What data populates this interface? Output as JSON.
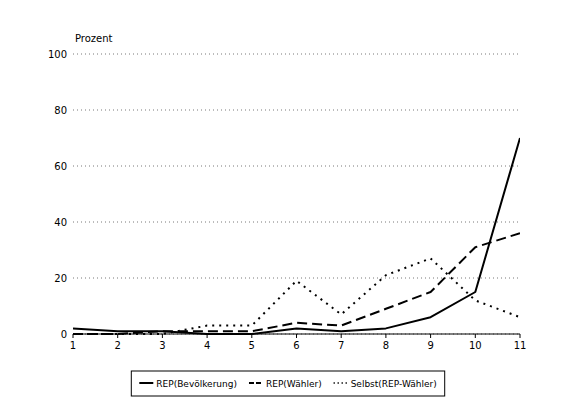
{
  "chart_data": {
    "type": "line",
    "y_label": "Prozent",
    "x": [
      1,
      2,
      3,
      4,
      5,
      6,
      7,
      8,
      9,
      10,
      11
    ],
    "xlim": [
      1,
      11
    ],
    "xticks": [
      1,
      2,
      3,
      4,
      5,
      6,
      7,
      8,
      9,
      10,
      11
    ],
    "ylim": [
      0,
      100
    ],
    "yticks": [
      0,
      20,
      40,
      60,
      80,
      100
    ],
    "grid": true,
    "legend": "bottom",
    "series": [
      {
        "name": "REP(Bevölkerung)",
        "color": "#000000",
        "line_style": "solid",
        "values": [
          2,
          1,
          1,
          0,
          0,
          2,
          1,
          2,
          6,
          15,
          70
        ]
      },
      {
        "name": "REP(Wähler)",
        "color": "#000000",
        "line_style": "dashed",
        "values": [
          0,
          0,
          1,
          1,
          1,
          4,
          3,
          9,
          15,
          31,
          36
        ]
      },
      {
        "name": "Selbst(REP-Wähler)",
        "color": "#000000",
        "line_style": "dotted",
        "values": [
          0,
          0,
          0,
          3,
          3,
          19,
          7,
          21,
          27,
          12,
          6
        ]
      }
    ]
  }
}
